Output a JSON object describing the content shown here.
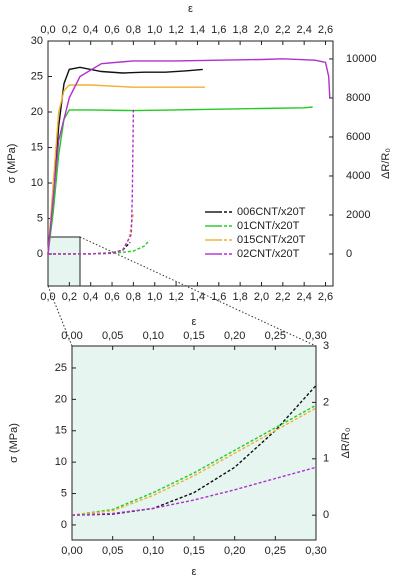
{
  "chart_data": [
    {
      "type": "line",
      "x_label": "ε",
      "y_label": "σ (MPa)",
      "y2_label": "ΔR/R₀",
      "xlim": [
        0,
        2.67
      ],
      "ylim": [
        -4.5,
        30
      ],
      "y2lim": [
        -1640,
        10920
      ],
      "xticks": [
        {
          "value": 0,
          "label": "0,0"
        },
        {
          "value": 0.2,
          "label": "0,2"
        },
        {
          "value": 0.4,
          "label": "0,4"
        },
        {
          "value": 0.6,
          "label": "0,6"
        },
        {
          "value": 0.8,
          "label": "0,8"
        },
        {
          "value": 1.0,
          "label": "1,0"
        },
        {
          "value": 1.2,
          "label": "1,2"
        },
        {
          "value": 1.4,
          "label": "1,4"
        },
        {
          "value": 1.6,
          "label": "1,6"
        },
        {
          "value": 1.8,
          "label": "1,8"
        },
        {
          "value": 2.0,
          "label": "2,0"
        },
        {
          "value": 2.2,
          "label": "2,2"
        },
        {
          "value": 2.4,
          "label": "2,4"
        },
        {
          "value": 2.6,
          "label": "2,6"
        }
      ],
      "yticks": [
        0,
        5,
        10,
        15,
        20,
        25,
        30
      ],
      "y2ticks": [
        0,
        2000,
        4000,
        6000,
        8000,
        10000
      ],
      "legend": "lower right",
      "series": [
        {
          "name": "006CNT/x20T",
          "color": "#111111",
          "x": [
            0,
            0.05,
            0.1,
            0.15,
            0.2,
            0.3,
            0.5,
            0.7,
            0.9,
            1.1,
            1.3,
            1.45
          ],
          "values": [
            0,
            8,
            18,
            24,
            26,
            26.3,
            25.7,
            25.5,
            25.6,
            25.6,
            25.8,
            26
          ],
          "r_x": [
            0,
            0.4,
            0.6,
            0.7,
            0.77
          ],
          "r_values": [
            0,
            10,
            60,
            200,
            600
          ]
        },
        {
          "name": "01CNT/x20T",
          "color": "#22cc22",
          "x": [
            0,
            0.05,
            0.1,
            0.15,
            0.2,
            0.4,
            0.8,
            1.2,
            1.6,
            2.0,
            2.4,
            2.48
          ],
          "values": [
            0,
            6,
            14,
            19,
            20.3,
            20.3,
            20.2,
            20.3,
            20.4,
            20.5,
            20.6,
            20.7
          ],
          "r_x": [
            0,
            0.4,
            0.6,
            0.8,
            0.9,
            0.95
          ],
          "r_values": [
            0,
            5,
            30,
            150,
            400,
            700
          ]
        },
        {
          "name": "015CNT/x20T",
          "color": "#f0b030",
          "x": [
            0,
            0.05,
            0.1,
            0.15,
            0.2,
            0.4,
            0.8,
            1.2,
            1.47
          ],
          "values": [
            0,
            10,
            20,
            23,
            23.8,
            23.8,
            23.5,
            23.5,
            23.5
          ],
          "r_x": [
            0,
            0.4,
            0.6,
            0.7,
            0.76,
            0.8
          ],
          "r_values": [
            0,
            5,
            40,
            200,
            800,
            2100
          ]
        },
        {
          "name": "02CNT/x20T",
          "color": "#b030d0",
          "x": [
            0,
            0.05,
            0.1,
            0.2,
            0.3,
            0.5,
            0.8,
            1.2,
            1.6,
            2.0,
            2.2,
            2.5,
            2.6,
            2.63,
            2.64
          ],
          "values": [
            0,
            8,
            16,
            22,
            25,
            26.8,
            27.2,
            27.2,
            27.3,
            27.4,
            27.5,
            27.3,
            27,
            25,
            22
          ],
          "r_x": [
            0,
            0.4,
            0.6,
            0.7,
            0.78,
            0.79,
            0.8
          ],
          "r_values": [
            0,
            5,
            40,
            200,
            1000,
            3000,
            7400
          ]
        }
      ]
    },
    {
      "type": "line",
      "x_label": "ε",
      "y_label": "σ (MPa)",
      "y2_label": "ΔR/R₀",
      "xlim": [
        0,
        0.3
      ],
      "ylim": [
        -2.4,
        28.5
      ],
      "y2lim": [
        -0.44,
        3
      ],
      "xticks": [
        {
          "value": 0,
          "label": "0,00"
        },
        {
          "value": 0.05,
          "label": "0,05"
        },
        {
          "value": 0.1,
          "label": "0,10"
        },
        {
          "value": 0.15,
          "label": "0,15"
        },
        {
          "value": 0.2,
          "label": "0,20"
        },
        {
          "value": 0.25,
          "label": "0,25"
        },
        {
          "value": 0.3,
          "label": "0,30"
        }
      ],
      "yticks": [
        0,
        5,
        10,
        15,
        20,
        25
      ],
      "y2ticks": [
        0,
        1,
        2,
        3
      ],
      "series": [
        {
          "color": "#111111",
          "axis": "y2",
          "x": [
            0,
            0.05,
            0.1,
            0.15,
            0.2,
            0.25,
            0.3
          ],
          "values": [
            0,
            0.02,
            0.12,
            0.4,
            0.85,
            1.5,
            2.3
          ]
        },
        {
          "color": "#22cc22",
          "axis": "y2",
          "x": [
            0,
            0.05,
            0.1,
            0.15,
            0.2,
            0.25,
            0.3
          ],
          "values": [
            0,
            0.1,
            0.4,
            0.75,
            1.15,
            1.55,
            1.95
          ]
        },
        {
          "color": "#f0b030",
          "axis": "y2",
          "x": [
            0,
            0.05,
            0.1,
            0.15,
            0.2,
            0.25,
            0.3
          ],
          "values": [
            0,
            0.08,
            0.35,
            0.7,
            1.1,
            1.5,
            1.9
          ]
        },
        {
          "color": "#b030d0",
          "axis": "y2",
          "x": [
            0,
            0.05,
            0.1,
            0.15,
            0.2,
            0.25,
            0.3
          ],
          "values": [
            0,
            0.03,
            0.12,
            0.27,
            0.45,
            0.65,
            0.85
          ]
        }
      ]
    }
  ]
}
